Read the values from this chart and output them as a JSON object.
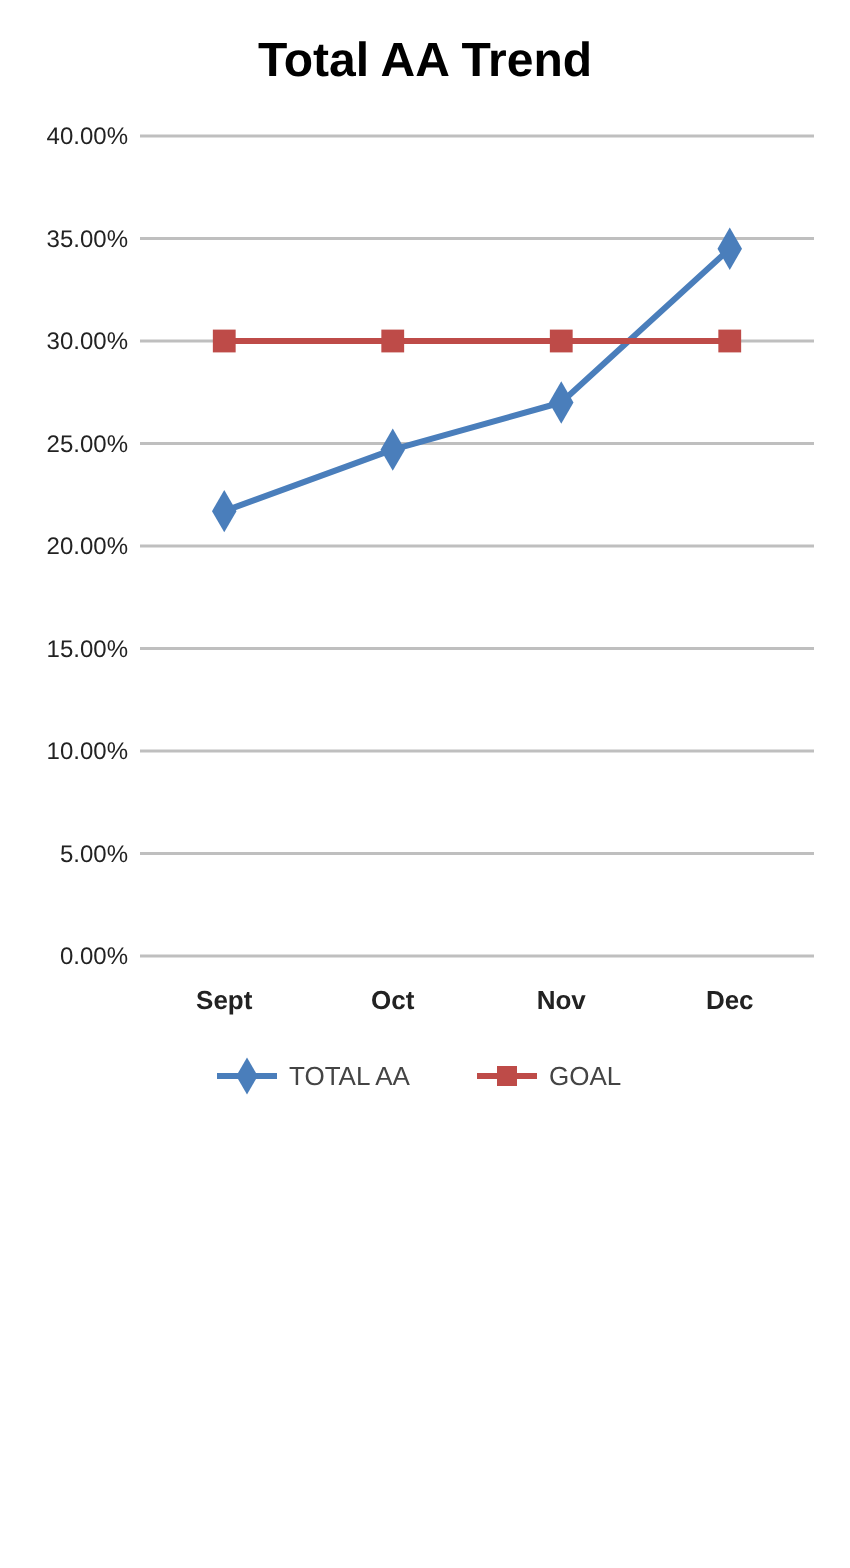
{
  "chart_data": {
    "type": "line",
    "title": "Total AA Trend",
    "categories": [
      "Sept",
      "Oct",
      "Nov",
      "Dec"
    ],
    "series": [
      {
        "name": "TOTAL AA",
        "color": "#4a7ebb",
        "values": [
          21.7,
          24.7,
          27,
          34.5
        ],
        "marker": "diamond"
      },
      {
        "name": "GOAL",
        "color": "#be4b48",
        "values": [
          30,
          30,
          30,
          30
        ],
        "marker": "square"
      }
    ],
    "ylim": [
      0,
      40
    ],
    "yticks": [
      {
        "value": 0,
        "label": "0.00%"
      },
      {
        "value": 5,
        "label": "5.00%"
      },
      {
        "value": 10,
        "label": "10.00%"
      },
      {
        "value": 15,
        "label": "15.00%"
      },
      {
        "value": 20,
        "label": "20.00%"
      },
      {
        "value": 25,
        "label": "25.00%"
      },
      {
        "value": 30,
        "label": "30.00%"
      },
      {
        "value": 35,
        "label": "35.00%"
      },
      {
        "value": 40,
        "label": "40.00%"
      }
    ],
    "grid": "y",
    "legend": "bottom",
    "line_style": "solid"
  }
}
